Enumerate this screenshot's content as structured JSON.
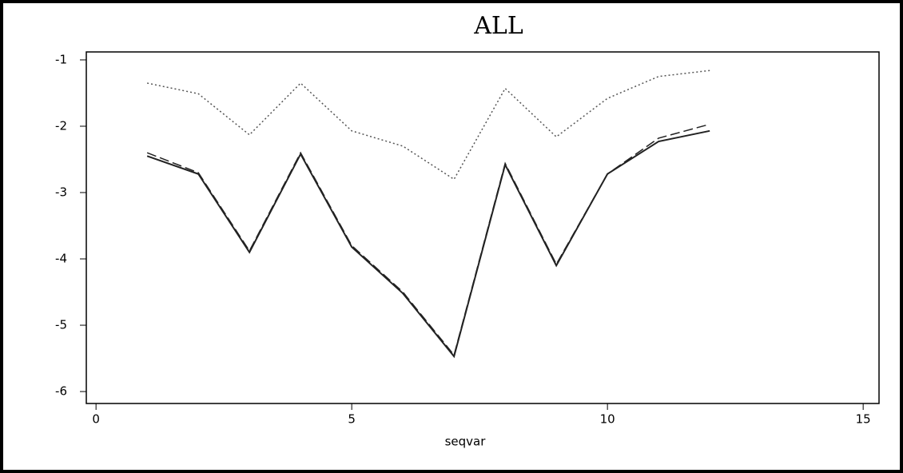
{
  "chart_data": {
    "type": "line",
    "title": "ALL",
    "x_label": "seqvar",
    "x": [
      1,
      2,
      3,
      4,
      5,
      6,
      7,
      8,
      9,
      10,
      11,
      12
    ],
    "series": [
      {
        "color": "#555555",
        "dash": "dotted",
        "values": [
          -1.35,
          -1.51,
          -2.13,
          -1.35,
          -2.07,
          -2.3,
          -2.8,
          -1.43,
          -2.16,
          -1.58,
          -1.25,
          -1.16
        ]
      },
      {
        "color": "#222222",
        "dash": "dashed",
        "values": [
          -2.4,
          -2.7,
          -3.88,
          -2.4,
          -3.8,
          -4.5,
          -5.45,
          -2.56,
          -4.08,
          -2.72,
          -2.18,
          -1.97
        ]
      },
      {
        "color": "#222222",
        "dash": "solid",
        "values": [
          -2.45,
          -2.72,
          -3.9,
          -2.42,
          -3.82,
          -4.52,
          -5.47,
          -2.58,
          -4.1,
          -2.72,
          -2.23,
          -2.07
        ]
      }
    ],
    "xlim": [
      -0.19,
      15.31
    ],
    "xticks": [
      0,
      5,
      10,
      15
    ],
    "ylim": [
      -6.18,
      -0.88
    ],
    "yticks": [
      -1,
      -2,
      -3,
      -4,
      -5,
      -6
    ],
    "grid": false
  }
}
